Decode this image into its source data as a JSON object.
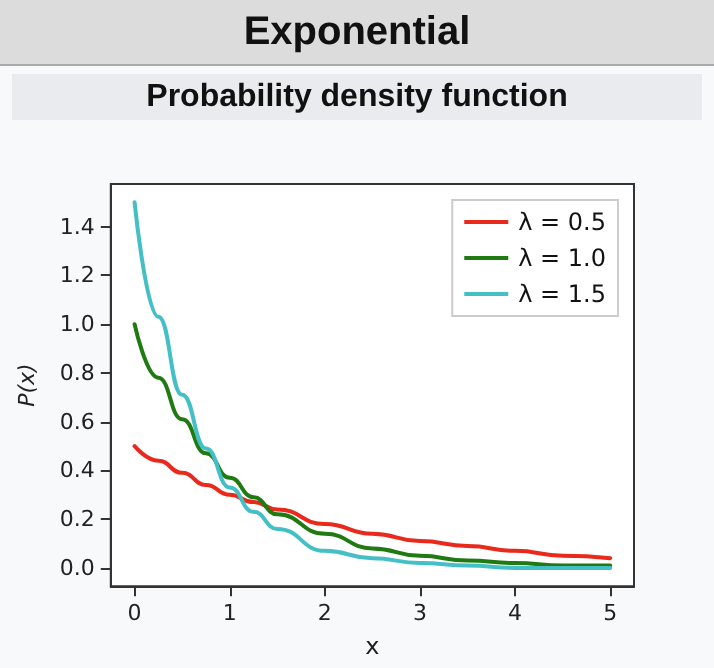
{
  "chart_data": {
    "type": "line",
    "title": "Exponential",
    "subtitle": "Probability density function",
    "xlabel": "x",
    "ylabel": "P(x)",
    "x": [
      0,
      0.25,
      0.5,
      0.75,
      1,
      1.25,
      1.5,
      2,
      2.5,
      3,
      3.5,
      4,
      4.5,
      5
    ],
    "series": [
      {
        "name": "λ = 0.5",
        "color": "#e8291c",
        "values": [
          0.5,
          0.44,
          0.39,
          0.34,
          0.3,
          0.27,
          0.24,
          0.18,
          0.14,
          0.11,
          0.09,
          0.07,
          0.05,
          0.04
        ]
      },
      {
        "name": "λ = 1.0",
        "color": "#1f7a12",
        "values": [
          1.0,
          0.78,
          0.61,
          0.47,
          0.37,
          0.29,
          0.22,
          0.14,
          0.08,
          0.05,
          0.03,
          0.02,
          0.01,
          0.01
        ]
      },
      {
        "name": "λ = 1.5",
        "color": "#44bfc6",
        "values": [
          1.5,
          1.03,
          0.71,
          0.49,
          0.33,
          0.23,
          0.16,
          0.07,
          0.04,
          0.02,
          0.01,
          0.0,
          0.0,
          0.0
        ]
      }
    ],
    "xlim": [
      -0.25,
      5.25
    ],
    "xticks": [
      0,
      1,
      2,
      3,
      4,
      5
    ],
    "ylim": [
      -0.075,
      1.575
    ],
    "yticks": [
      {
        "value": 0,
        "label": "0.0"
      },
      0.2,
      0.4,
      0.6,
      0.8,
      {
        "value": 1,
        "label": "1.0"
      },
      1.2,
      1.4
    ],
    "legend": "top right",
    "marker": "none",
    "line_style": "solid"
  }
}
